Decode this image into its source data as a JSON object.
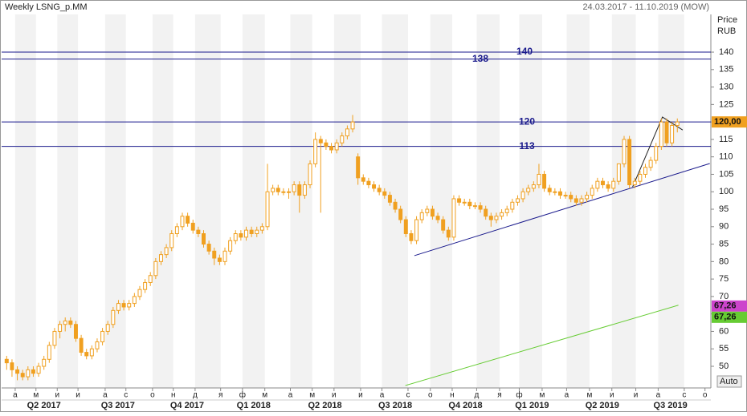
{
  "chart_data": {
    "type": "candlestick",
    "title": "Weekly LSNG_p.MM",
    "date_range": "24.03.2017 - 11.10.2019 (MOW)",
    "y_label_1": "Price",
    "y_label_2": "RUB",
    "scale_button": "Auto",
    "ylim": [
      43.8,
      150.8
    ],
    "yticks": [
      50,
      55,
      60,
      65,
      70,
      75,
      80,
      85,
      90,
      95,
      100,
      105,
      110,
      115,
      120,
      125,
      130,
      135,
      140
    ],
    "xlim": [
      -0.5,
      132.3
    ],
    "xticks": [
      {
        "value": 1.6,
        "label": "а"
      },
      {
        "value": 5.5,
        "label": "м"
      },
      {
        "value": 9.5,
        "label": "и"
      },
      {
        "value": 13.4,
        "label": "и"
      },
      {
        "value": 18.5,
        "label": "а"
      },
      {
        "value": 22.4,
        "label": "с"
      },
      {
        "value": 27.4,
        "label": "о"
      },
      {
        "value": 31.3,
        "label": "н"
      },
      {
        "value": 35.4,
        "label": "д"
      },
      {
        "value": 40.2,
        "label": "я"
      },
      {
        "value": 44.3,
        "label": "ф"
      },
      {
        "value": 48.5,
        "label": "м"
      },
      {
        "value": 53.3,
        "label": "а"
      },
      {
        "value": 57.4,
        "label": "м"
      },
      {
        "value": 61.5,
        "label": "и"
      },
      {
        "value": 66.5,
        "label": "и"
      },
      {
        "value": 70.5,
        "label": "а"
      },
      {
        "value": 75.4,
        "label": "с"
      },
      {
        "value": 79.6,
        "label": "о"
      },
      {
        "value": 83.7,
        "label": "н"
      },
      {
        "value": 88.3,
        "label": "д"
      },
      {
        "value": 92.6,
        "label": "я"
      },
      {
        "value": 96.3,
        "label": "ф"
      },
      {
        "value": 100.6,
        "label": "м"
      },
      {
        "value": 105.2,
        "label": "а"
      },
      {
        "value": 109.5,
        "label": "м"
      },
      {
        "value": 113.7,
        "label": "и"
      },
      {
        "value": 118.2,
        "label": "и"
      },
      {
        "value": 122.4,
        "label": "а"
      },
      {
        "value": 127.3,
        "label": "с"
      },
      {
        "value": 131.2,
        "label": "о"
      }
    ],
    "quarter_ticks": [
      {
        "value": 7.0,
        "label": "Q2 2017"
      },
      {
        "value": 20.9,
        "label": "Q3 2017"
      },
      {
        "value": 33.9,
        "label": "Q4 2017"
      },
      {
        "value": 46.4,
        "label": "Q1 2018"
      },
      {
        "value": 59.8,
        "label": "Q2 2018"
      },
      {
        "value": 73.0,
        "label": "Q3 2018"
      },
      {
        "value": 86.2,
        "label": "Q4 2018"
      },
      {
        "value": 98.7,
        "label": "Q1 2019"
      },
      {
        "value": 111.9,
        "label": "Q2 2019"
      },
      {
        "value": 124.7,
        "label": "Q3 2019"
      }
    ],
    "color": "#f0a020",
    "ohlc": [
      [
        52,
        53,
        49,
        51
      ],
      [
        51,
        52,
        47,
        49
      ],
      [
        49,
        50,
        46,
        48
      ],
      [
        48,
        49,
        46,
        47
      ],
      [
        47,
        50,
        46,
        49
      ],
      [
        49,
        50,
        47,
        48
      ],
      [
        48,
        51,
        47,
        50
      ],
      [
        50,
        53,
        49,
        52
      ],
      [
        52,
        57,
        51,
        56
      ],
      [
        56,
        61,
        55,
        60
      ],
      [
        60,
        63,
        58,
        62
      ],
      [
        62,
        64,
        60,
        63
      ],
      [
        63,
        64,
        61,
        62
      ],
      [
        62,
        63,
        57,
        58
      ],
      [
        58,
        59,
        53,
        54
      ],
      [
        54,
        55,
        52,
        53
      ],
      [
        53,
        56,
        52,
        55
      ],
      [
        55,
        58,
        54,
        57
      ],
      [
        57,
        61,
        56,
        60
      ],
      [
        60,
        63,
        59,
        62
      ],
      [
        62,
        67,
        61,
        66
      ],
      [
        66,
        69,
        65,
        68
      ],
      [
        68,
        69,
        66,
        67
      ],
      [
        67,
        69,
        66,
        68
      ],
      [
        68,
        71,
        67,
        70
      ],
      [
        70,
        73,
        69,
        72
      ],
      [
        72,
        75,
        71,
        74
      ],
      [
        74,
        77,
        73,
        76
      ],
      [
        76,
        81,
        75,
        80
      ],
      [
        80,
        83,
        79,
        82
      ],
      [
        82,
        85,
        81,
        84
      ],
      [
        84,
        89,
        83,
        88
      ],
      [
        88,
        91,
        87,
        90
      ],
      [
        90,
        94,
        89,
        93
      ],
      [
        93,
        94,
        90,
        91
      ],
      [
        91,
        92,
        88,
        89
      ],
      [
        89,
        90,
        87,
        88
      ],
      [
        88,
        89,
        84,
        85
      ],
      [
        85,
        86,
        82,
        83
      ],
      [
        83,
        84,
        79,
        81
      ],
      [
        81,
        82,
        79,
        80
      ],
      [
        80,
        84,
        79,
        83
      ],
      [
        83,
        87,
        82,
        86
      ],
      [
        86,
        89,
        85,
        88
      ],
      [
        88,
        89,
        86,
        87
      ],
      [
        87,
        90,
        86,
        89
      ],
      [
        89,
        90,
        87,
        88
      ],
      [
        88,
        90,
        87,
        89
      ],
      [
        89,
        91,
        88,
        90
      ],
      [
        90,
        108,
        89,
        100
      ],
      [
        100,
        102,
        99,
        101
      ],
      [
        101,
        102,
        99,
        100
      ],
      [
        100,
        101,
        99,
        100
      ],
      [
        100,
        101,
        98,
        100
      ],
      [
        100,
        103,
        99,
        102
      ],
      [
        102,
        103,
        94,
        99
      ],
      [
        99,
        103,
        98,
        102
      ],
      [
        102,
        109,
        101,
        108
      ],
      [
        108,
        117,
        107,
        115
      ],
      [
        115,
        116,
        94,
        114
      ],
      [
        114,
        115,
        112,
        113
      ],
      [
        113,
        114,
        111,
        112
      ],
      [
        112,
        115,
        111,
        114
      ],
      [
        114,
        117,
        113,
        116
      ],
      [
        116,
        119,
        115,
        118
      ],
      [
        118,
        122,
        117,
        120
      ],
      [
        110,
        111,
        102,
        104
      ],
      [
        104,
        105,
        102,
        103
      ],
      [
        103,
        104,
        101,
        102
      ],
      [
        102,
        103,
        100,
        101
      ],
      [
        101,
        102,
        99,
        100
      ],
      [
        100,
        101,
        98,
        99
      ],
      [
        99,
        100,
        96,
        97
      ],
      [
        97,
        98,
        94,
        95
      ],
      [
        95,
        96,
        91,
        92
      ],
      [
        92,
        93,
        87,
        88
      ],
      [
        88,
        89,
        85,
        86
      ],
      [
        86,
        93,
        85,
        92
      ],
      [
        92,
        95,
        91,
        94
      ],
      [
        94,
        96,
        93,
        95
      ],
      [
        95,
        96,
        92,
        93
      ],
      [
        93,
        94,
        91,
        92
      ],
      [
        92,
        93,
        88,
        89
      ],
      [
        89,
        90,
        86,
        87
      ],
      [
        87,
        99,
        86,
        98
      ],
      [
        98,
        99,
        96,
        97
      ],
      [
        97,
        98,
        96,
        97
      ],
      [
        97,
        98,
        95,
        96
      ],
      [
        96,
        97,
        95,
        96
      ],
      [
        96,
        97,
        94,
        95
      ],
      [
        95,
        96,
        92,
        93
      ],
      [
        93,
        94,
        90,
        92
      ],
      [
        92,
        94,
        91,
        93
      ],
      [
        93,
        95,
        92,
        94
      ],
      [
        94,
        96,
        93,
        95
      ],
      [
        95,
        98,
        94,
        97
      ],
      [
        97,
        99,
        96,
        98
      ],
      [
        98,
        101,
        97,
        100
      ],
      [
        100,
        102,
        99,
        101
      ],
      [
        101,
        103,
        100,
        102
      ],
      [
        102,
        108,
        101,
        105
      ],
      [
        105,
        106,
        100,
        101
      ],
      [
        101,
        102,
        99,
        100
      ],
      [
        100,
        101,
        99,
        100
      ],
      [
        100,
        101,
        98,
        99
      ],
      [
        99,
        100,
        98,
        99
      ],
      [
        99,
        100,
        97,
        98
      ],
      [
        98,
        99,
        96,
        97
      ],
      [
        97,
        99,
        96,
        98
      ],
      [
        98,
        100,
        97,
        99
      ],
      [
        99,
        102,
        98,
        101
      ],
      [
        101,
        104,
        100,
        103
      ],
      [
        103,
        104,
        101,
        102
      ],
      [
        102,
        103,
        100,
        101
      ],
      [
        101,
        104,
        100,
        103
      ],
      [
        103,
        108,
        102,
        108
      ],
      [
        108,
        116,
        107,
        115
      ],
      [
        115,
        116,
        101,
        102
      ],
      [
        102,
        104,
        101,
        103
      ],
      [
        103,
        106,
        102,
        105
      ],
      [
        105,
        108,
        104,
        107
      ],
      [
        107,
        110,
        106,
        109
      ],
      [
        109,
        114,
        108,
        113
      ],
      [
        113,
        121,
        112,
        120
      ],
      [
        120,
        121,
        113,
        114
      ],
      [
        114,
        120,
        113,
        119
      ],
      [
        119,
        121,
        117,
        120
      ]
    ],
    "levels": [
      {
        "value": 140,
        "color": "#1a1a8c"
      },
      {
        "value": 138,
        "color": "#1a1a8c"
      },
      {
        "value": 120,
        "color": "#1a1a8c"
      },
      {
        "value": 113,
        "color": "#1a1a8c"
      }
    ],
    "trendlines": [
      {
        "color": "#1a1a8c",
        "x": [
          76.6,
          132.1
        ],
        "y": [
          81.7,
          108.1
        ]
      },
      {
        "color": "#222222",
        "x": [
          117.6,
          123.2,
          127.0
        ],
        "y": [
          101.4,
          121.4,
          117.7
        ]
      },
      {
        "color": "#66cc33",
        "x": [
          74.9,
          126.2
        ],
        "y": [
          44.5,
          67.5
        ]
      }
    ],
    "price_tags": [
      {
        "value": 120,
        "label": "120,00",
        "color": "#f0a020"
      },
      {
        "value": 67.26,
        "label": "67,26",
        "color": "#cc44cc"
      },
      {
        "value": 67.26,
        "label": "67,26",
        "color": "#66cc33"
      }
    ]
  }
}
